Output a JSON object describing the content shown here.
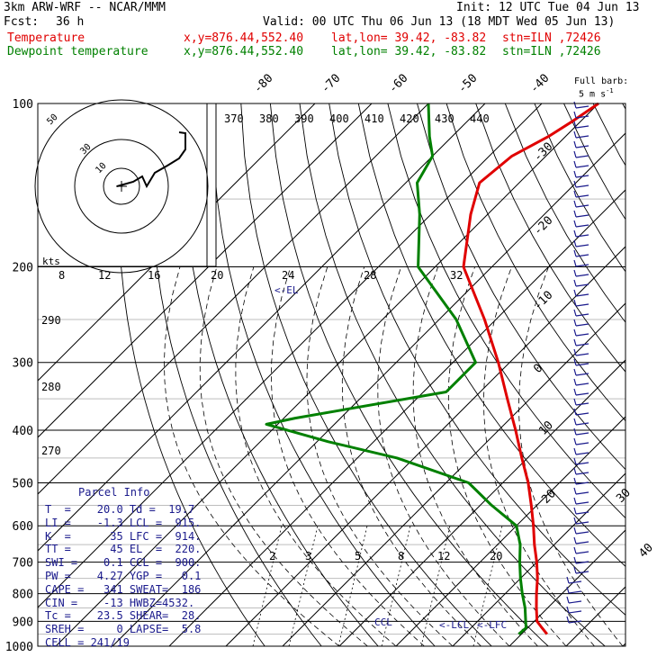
{
  "header": {
    "model": "3km ARW-WRF -- NCAR/MMM",
    "init": "Init: 12 UTC Tue 04 Jun 13",
    "fcst_label": "Fcst:",
    "fcst_value": "36 h",
    "valid": "Valid: 00 UTC Thu 06 Jun 13 (18 MDT Wed 05 Jun 13)",
    "temp_label": "Temperature",
    "dew_label": "Dewpoint temperature",
    "xy": "x,y=876.44,552.40",
    "latlon": "lat,lon= 39.42, -83.82",
    "stn": "stn=ILN ,72426"
  },
  "colors": {
    "temperature": "#e00000",
    "dewpoint": "#008000",
    "parcel": "#1a1a8c",
    "grid": "#000000"
  },
  "barb_legend": {
    "title": "Full barb:",
    "value": "5 m s",
    "sup": "-1"
  },
  "hodograph": {
    "units": "kts",
    "ring_labels": [
      "10",
      "30",
      "50"
    ]
  },
  "parcel_info": {
    "title": "Parcel Info",
    "rows": [
      "T  =    20.0 Td =  19.7",
      "LI =    -1.3 LCL =  915.",
      "K  =      35 LFC =  914.",
      "TT =      45 EL  =  220.",
      "SWI =    0.1 CCL =  900.",
      "PW =    4.27 YGP =   0.1",
      "CAPE =   341 SWEAT=  186",
      "CIN =    -13 HWBZ=4532.",
      "Tc =    23.5 SHEAR=  28.",
      "SREH =     0 LAPSE=  5.8",
      "CELL = 241/19"
    ]
  },
  "annotations": {
    "el": "<-EL",
    "ccl": "CCL",
    "lcl": "<-LCL",
    "lfc": "<-LFC"
  },
  "chart_data": {
    "type": "line",
    "title": "",
    "xlabel": "",
    "ylabel": "",
    "y_scale": "log-pressure (reversed)",
    "pressure_ticks": [
      100,
      200,
      300,
      400,
      500,
      600,
      700,
      800,
      900,
      1000
    ],
    "isotherm_labels_top": [
      -80,
      -70,
      -60,
      -50,
      -40
    ],
    "isotherm_labels_right": [
      -30,
      -20,
      -10,
      0,
      10,
      20,
      30,
      40
    ],
    "theta_labels": [
      370,
      380,
      390,
      400,
      410,
      420,
      430,
      440
    ],
    "theta_labels_left": [
      290,
      280,
      270
    ],
    "mixing_ratio_labels": [
      2,
      3,
      5,
      8,
      12,
      20
    ],
    "hodograph_speed_labels": [
      8,
      12,
      16,
      20,
      24,
      28,
      32
    ],
    "series": [
      {
        "name": "Temperature",
        "color": "#e00000",
        "pressure": [
          950,
          925,
          900,
          850,
          800,
          750,
          700,
          650,
          600,
          550,
          500,
          450,
          400,
          350,
          300,
          250,
          200,
          160,
          140,
          125,
          115,
          108,
          100
        ],
        "temperature_c": [
          24.5,
          22.5,
          20.5,
          18.0,
          15.5,
          13.0,
          10.0,
          6.5,
          3.0,
          -1.0,
          -5.5,
          -11.0,
          -17.0,
          -24.0,
          -32.0,
          -42.0,
          -55.0,
          -63.0,
          -67.0,
          -66.0,
          -63.0,
          -61.5,
          -60.0
        ]
      },
      {
        "name": "Dewpoint temperature",
        "color": "#008000",
        "pressure": [
          950,
          925,
          900,
          850,
          800,
          750,
          700,
          650,
          600,
          550,
          500,
          450,
          420,
          390,
          380,
          340,
          300,
          250,
          200,
          160,
          140,
          125,
          115,
          100
        ],
        "temperature_c": [
          19.5,
          19.7,
          18.5,
          16.0,
          13.0,
          10.0,
          7.0,
          4.0,
          0.0,
          -8.0,
          -16.0,
          -33.0,
          -48.0,
          -62.0,
          -58.0,
          -36.0,
          -36.0,
          -47.0,
          -63.0,
          -72.0,
          -78.0,
          -80.0,
          -84.0,
          -90.0
        ]
      }
    ]
  }
}
